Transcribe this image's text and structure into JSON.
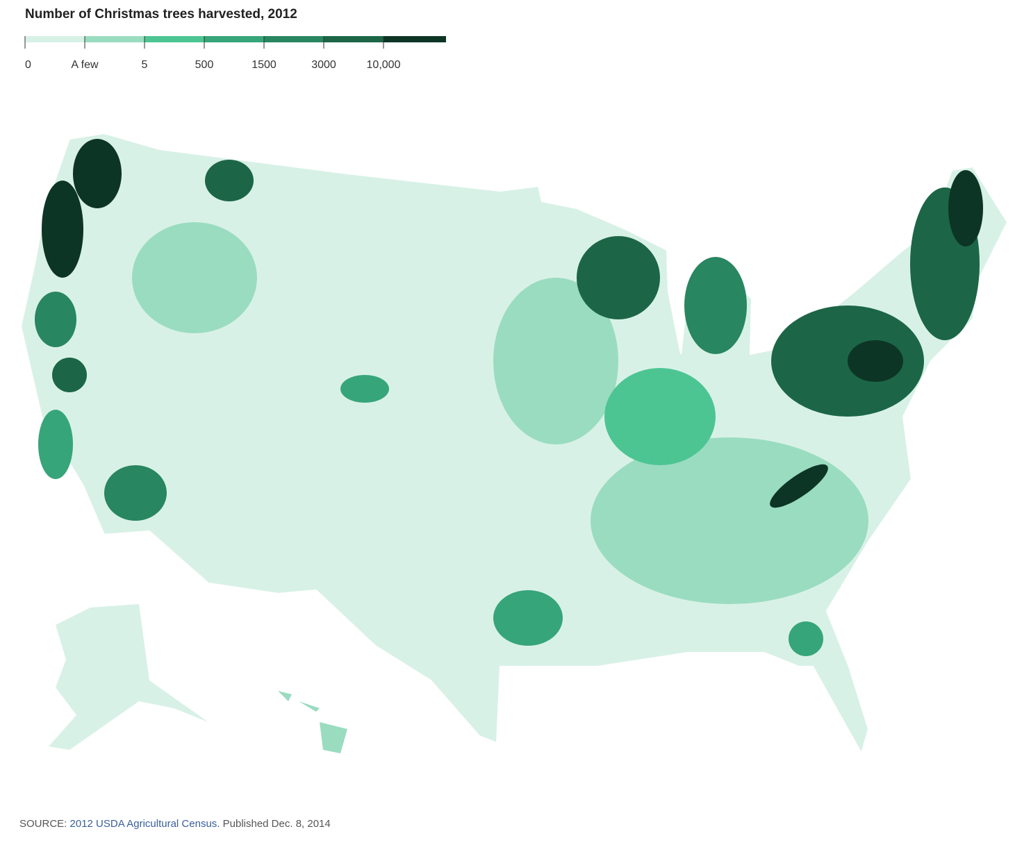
{
  "title": "Number of Christmas trees harvested, 2012",
  "legend": {
    "labels": [
      "0",
      "A few",
      "5",
      "500",
      "1500",
      "3000",
      "10,000"
    ],
    "colors": [
      "#d8f1e7",
      "#9adcc0",
      "#4cc593",
      "#36a57a",
      "#288660",
      "#1c6647",
      "#0d3526"
    ]
  },
  "source": {
    "prefix": "SOURCE:",
    "link": "2012 USDA Agricultural Census",
    "suffix": ". Published Dec. 8, 2014"
  }
}
